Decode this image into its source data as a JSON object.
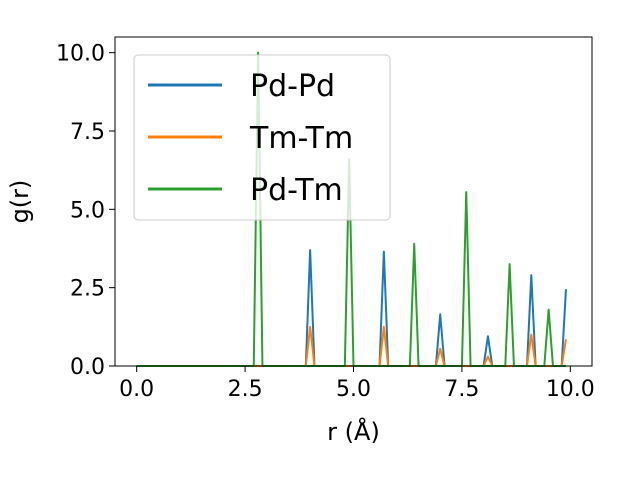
{
  "chart_data": {
    "type": "line",
    "xlabel": "r (Å)",
    "ylabel": "g(r)",
    "xlim": [
      -0.5,
      10.5
    ],
    "ylim": [
      0,
      10.5
    ],
    "xticks": [
      "0.0",
      "2.5",
      "5.0",
      "7.5",
      "10.0"
    ],
    "yticks": [
      "0.0",
      "2.5",
      "5.0",
      "7.5",
      "10.0"
    ],
    "grid": false,
    "legend_position": "top-left",
    "series": [
      {
        "name": "Pd-Pd",
        "color": "#1f77b4",
        "x": [
          0.0,
          3.9,
          4.0,
          4.1,
          5.6,
          5.7,
          5.8,
          6.9,
          7.0,
          7.1,
          8.0,
          8.1,
          8.2,
          9.0,
          9.1,
          9.2,
          9.8,
          9.9
        ],
        "y": [
          0.0,
          0.0,
          3.7,
          0.0,
          0.0,
          3.65,
          0.0,
          0.0,
          1.65,
          0.0,
          0.0,
          0.95,
          0.0,
          0.0,
          2.9,
          0.0,
          0.0,
          2.45
        ]
      },
      {
        "name": "Tm-Tm",
        "color": "#ff7f0e",
        "x": [
          0.0,
          3.9,
          4.0,
          4.1,
          5.6,
          5.7,
          5.8,
          6.9,
          7.0,
          7.1,
          8.0,
          8.1,
          8.2,
          9.0,
          9.1,
          9.2,
          9.8,
          9.9
        ],
        "y": [
          0.0,
          0.0,
          1.25,
          0.0,
          0.0,
          1.25,
          0.0,
          0.0,
          0.55,
          0.0,
          0.0,
          0.3,
          0.0,
          0.0,
          1.0,
          0.0,
          0.0,
          0.85
        ]
      },
      {
        "name": "Pd-Tm",
        "color": "#2ca02c",
        "x": [
          0.0,
          2.7,
          2.8,
          2.9,
          4.8,
          4.9,
          5.0,
          6.3,
          6.4,
          6.5,
          7.5,
          7.6,
          7.7,
          8.5,
          8.6,
          8.7,
          9.4,
          9.5,
          9.6,
          9.9
        ],
        "y": [
          0.0,
          0.0,
          10.0,
          0.0,
          0.0,
          6.6,
          0.0,
          0.0,
          3.9,
          0.0,
          0.0,
          5.55,
          0.0,
          0.0,
          3.25,
          0.0,
          0.0,
          1.8,
          0.0,
          0.0
        ]
      }
    ]
  }
}
